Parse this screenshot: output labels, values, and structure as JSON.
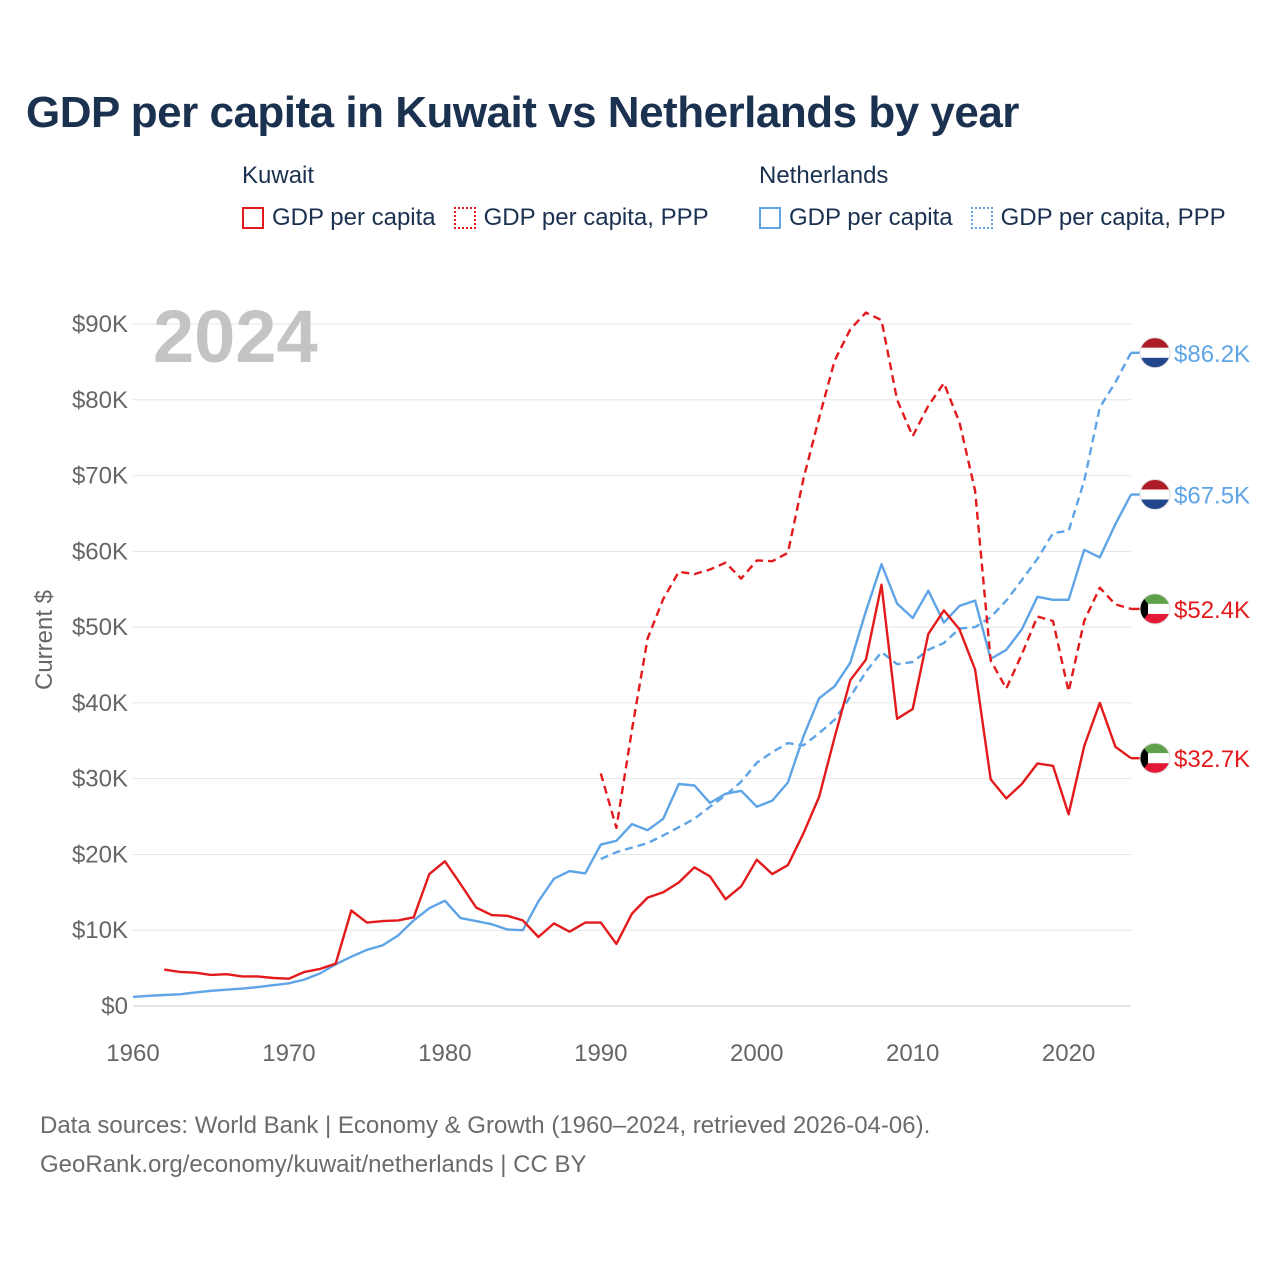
{
  "page": {
    "title": "GDP per capita in Kuwait vs Netherlands by year",
    "year_overlay": "2024",
    "source_line1": "Data sources: World Bank | Economy & Growth (1960–2024, retrieved 2026-04-06).",
    "source_line2": "GeoRank.org/economy/kuwait/netherlands | CC BY"
  },
  "legend": {
    "kuwait": {
      "name": "Kuwait",
      "gdp": "GDP per capita",
      "ppp": "GDP per capita, PPP"
    },
    "netherlands": {
      "name": "Netherlands",
      "gdp": "GDP per capita",
      "ppp": "GDP per capita, PPP"
    }
  },
  "colors": {
    "kuwait": "#e31a1c",
    "netherlands": "#5ea4e6",
    "grid": "#e6e6e6",
    "axis_text": "#666666"
  },
  "chart_data": {
    "type": "line",
    "title": "GDP per capita in Kuwait vs Netherlands by year",
    "xlabel": "",
    "ylabel": "Current $",
    "xlim": [
      1960,
      2024
    ],
    "ylim": [
      0,
      90000
    ],
    "x_ticks": [
      1960,
      1970,
      1980,
      1990,
      2000,
      2010,
      2020
    ],
    "x_tick_labels": [
      "1960",
      "1970",
      "1980",
      "1990",
      "2000",
      "2010",
      "2020"
    ],
    "y_ticks": [
      0,
      10000,
      20000,
      30000,
      40000,
      50000,
      60000,
      70000,
      80000,
      90000
    ],
    "y_tick_labels": [
      "$0",
      "$10K",
      "$20K",
      "$30K",
      "$40K",
      "$50K",
      "$60K",
      "$70K",
      "$80K",
      "$90K"
    ],
    "series": [
      {
        "name": "Netherlands GDP per capita, PPP",
        "country": "netherlands",
        "style": "dashed",
        "end_label": "$86.2K",
        "flag": "netherlands",
        "x": [
          1990,
          1991,
          1992,
          1993,
          1994,
          1995,
          1996,
          1997,
          1998,
          1999,
          2000,
          2001,
          2002,
          2003,
          2004,
          2005,
          2006,
          2007,
          2008,
          2009,
          2010,
          2011,
          2012,
          2013,
          2014,
          2015,
          2016,
          2017,
          2018,
          2019,
          2020,
          2021,
          2022,
          2023,
          2024
        ],
        "values": [
          19400,
          20300,
          20900,
          21500,
          22500,
          23600,
          24700,
          26300,
          27800,
          29600,
          32100,
          33500,
          34700,
          34400,
          36000,
          37800,
          40800,
          44100,
          46700,
          45100,
          45400,
          47000,
          47900,
          49800,
          50000,
          51300,
          53500,
          56200,
          59000,
          62400,
          62700,
          69300,
          79000,
          82300,
          86200
        ]
      },
      {
        "name": "Netherlands GDP per capita",
        "country": "netherlands",
        "style": "solid",
        "end_label": "$67.5K",
        "flag": "netherlands",
        "x": [
          1960,
          1961,
          1962,
          1963,
          1964,
          1965,
          1966,
          1967,
          1968,
          1969,
          1970,
          1971,
          1972,
          1973,
          1974,
          1975,
          1976,
          1977,
          1978,
          1979,
          1980,
          1981,
          1982,
          1983,
          1984,
          1985,
          1986,
          1987,
          1988,
          1989,
          1990,
          1991,
          1992,
          1993,
          1994,
          1995,
          1996,
          1997,
          1998,
          1999,
          2000,
          2001,
          2002,
          2003,
          2004,
          2005,
          2006,
          2007,
          2008,
          2009,
          2010,
          2011,
          2012,
          2013,
          2014,
          2015,
          2016,
          2017,
          2018,
          2019,
          2020,
          2021,
          2022,
          2023,
          2024
        ],
        "values": [
          1200,
          1350,
          1450,
          1550,
          1800,
          2000,
          2150,
          2300,
          2500,
          2750,
          3000,
          3500,
          4300,
          5500,
          6500,
          7400,
          8000,
          9300,
          11300,
          12900,
          13900,
          11600,
          11200,
          10800,
          10100,
          10000,
          13800,
          16800,
          17800,
          17500,
          21300,
          21800,
          24000,
          23200,
          24700,
          29300,
          29100,
          26800,
          28000,
          28400,
          26300,
          27100,
          29500,
          35600,
          40600,
          42200,
          45300,
          52100,
          58300,
          53100,
          51200,
          54800,
          50600,
          52800,
          53500,
          45800,
          47000,
          49700,
          54000,
          53600,
          53600,
          60200,
          59200,
          63600,
          67500
        ]
      },
      {
        "name": "Kuwait GDP per capita, PPP",
        "country": "kuwait",
        "style": "dashed",
        "end_label": "$52.4K",
        "flag": "kuwait",
        "x": [
          1990,
          1991,
          1992,
          1993,
          1994,
          1995,
          1996,
          1997,
          1998,
          1999,
          2000,
          2001,
          2002,
          2003,
          2004,
          2005,
          2006,
          2007,
          2008,
          2009,
          2010,
          2011,
          2012,
          2013,
          2014,
          2015,
          2016,
          2017,
          2018,
          2019,
          2020,
          2021,
          2022,
          2023,
          2024
        ],
        "values": [
          30700,
          23500,
          36500,
          48500,
          53700,
          57300,
          57000,
          57600,
          58500,
          56400,
          58800,
          58700,
          59800,
          69600,
          77600,
          85200,
          89300,
          91500,
          90500,
          80000,
          75200,
          79200,
          82200,
          77000,
          68000,
          45600,
          41900,
          46400,
          51400,
          50800,
          41500,
          50800,
          55200,
          53000,
          52400
        ]
      },
      {
        "name": "Kuwait GDP per capita",
        "country": "kuwait",
        "style": "solid",
        "end_label": "$32.7K",
        "flag": "kuwait",
        "x": [
          1962,
          1963,
          1964,
          1965,
          1966,
          1967,
          1968,
          1969,
          1970,
          1971,
          1972,
          1973,
          1974,
          1975,
          1976,
          1977,
          1978,
          1979,
          1980,
          1981,
          1982,
          1983,
          1984,
          1985,
          1986,
          1987,
          1988,
          1989,
          1990,
          1991,
          1992,
          1993,
          1994,
          1995,
          1996,
          1997,
          1998,
          1999,
          2000,
          2001,
          2002,
          2003,
          2004,
          2005,
          2006,
          2007,
          2008,
          2009,
          2010,
          2011,
          2012,
          2013,
          2014,
          2015,
          2016,
          2017,
          2018,
          2019,
          2020,
          2021,
          2022,
          2023,
          2024
        ],
        "values": [
          4800,
          4500,
          4400,
          4100,
          4200,
          3900,
          3900,
          3700,
          3600,
          4500,
          4900,
          5600,
          12600,
          11000,
          11200,
          11300,
          11700,
          17400,
          19100,
          16100,
          13000,
          12000,
          11900,
          11300,
          9100,
          10900,
          9800,
          11000,
          11000,
          8200,
          12200,
          14300,
          15000,
          16300,
          18300,
          17100,
          14100,
          15800,
          19300,
          17400,
          18600,
          22800,
          27600,
          35500,
          43000,
          45700,
          55600,
          37900,
          39200,
          49100,
          52200,
          49700,
          44400,
          29900,
          27400,
          29300,
          32000,
          31700,
          25300,
          34300,
          40000,
          34200,
          32700
        ]
      }
    ]
  }
}
